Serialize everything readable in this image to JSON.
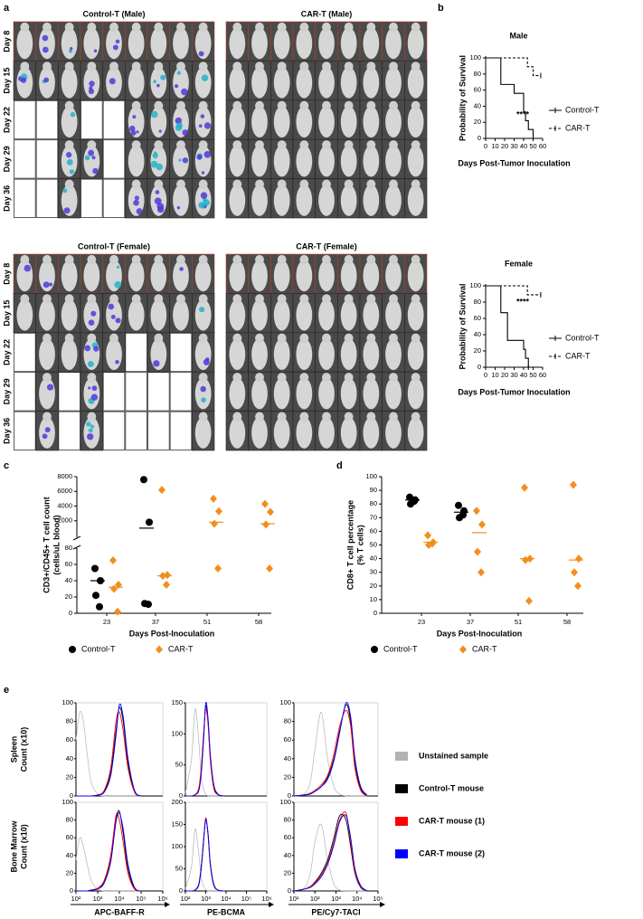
{
  "panel_labels": [
    "a",
    "b",
    "c",
    "d",
    "e"
  ],
  "imaging": {
    "titles": [
      "Control-T (Male)",
      "CAR-T (Male)",
      "Control-T (Female)",
      "CAR-T (Female)"
    ],
    "days": [
      "Day 8",
      "Day 15",
      "Day 22",
      "Day 29",
      "Day 36"
    ]
  },
  "chart_data": [
    {
      "type": "step",
      "title": "Male",
      "xlabel": "Days Post-Tumor Inoculation",
      "ylabel": "Probability of Survival",
      "xlim": [
        0,
        60
      ],
      "xticks": [
        0,
        10,
        20,
        30,
        40,
        50,
        60
      ],
      "ylim": [
        0,
        100
      ],
      "yticks": [
        0,
        20,
        40,
        60,
        80,
        100
      ],
      "annotation": "****",
      "series": [
        {
          "name": "Control-T",
          "color": "#000000",
          "dashed": false,
          "x": [
            0,
            16,
            30,
            40,
            42,
            45,
            50
          ],
          "values": [
            100,
            67,
            56,
            33,
            22,
            11,
            0
          ]
        },
        {
          "name": "CAR-T",
          "color": "#000000",
          "dashed": true,
          "x": [
            0,
            44,
            50,
            58
          ],
          "values": [
            100,
            89,
            78,
            78
          ]
        }
      ]
    },
    {
      "type": "step",
      "title": "Female",
      "xlabel": "Days Post-Tumor Inoculation",
      "ylabel": "Probability of Survival",
      "xlim": [
        0,
        60
      ],
      "xticks": [
        0,
        10,
        20,
        30,
        40,
        50,
        60
      ],
      "ylim": [
        0,
        100
      ],
      "yticks": [
        0,
        20,
        40,
        60,
        80,
        100
      ],
      "annotation": "****",
      "series": [
        {
          "name": "Control-T",
          "color": "#000000",
          "dashed": false,
          "x": [
            0,
            16,
            23,
            40,
            42,
            45
          ],
          "values": [
            100,
            67,
            33,
            22,
            11,
            0
          ]
        },
        {
          "name": "CAR-T",
          "color": "#000000",
          "dashed": true,
          "x": [
            0,
            44,
            58
          ],
          "values": [
            100,
            89,
            89
          ]
        }
      ]
    },
    {
      "type": "dot",
      "xlabel": "Days Post-Inoculation",
      "ylabel": [
        "CD3+/CD45+ T cell count",
        "(cells/uL blood)"
      ],
      "categories": [
        "23",
        "37",
        "51",
        "58"
      ],
      "ylim": [
        0,
        80
      ],
      "yticks": [
        0,
        20,
        40,
        60,
        80
      ],
      "ylim_upper": [
        0,
        8000
      ],
      "yticks_upper": [
        2000,
        4000,
        6000,
        8000
      ],
      "series": [
        {
          "name": "Control-T",
          "color": "#000000",
          "marker": "circle",
          "values": [
            [
              55,
              40,
              22,
              8
            ],
            [
              7600,
              1800,
              12,
              11
            ],
            null,
            null
          ],
          "means": [
            40,
            1000,
            null,
            null
          ]
        },
        {
          "name": "CAR-T",
          "color": "#f28e1c",
          "marker": "diamond",
          "values": [
            [
              65,
              35,
              30,
              2
            ],
            [
              6200,
              47,
              46,
              35
            ],
            [
              5000,
              3300,
              1600,
              55
            ],
            [
              4300,
              3200,
              1500,
              55
            ]
          ],
          "means": [
            32,
            46,
            1800,
            1600
          ]
        }
      ]
    },
    {
      "type": "dot",
      "xlabel": "Days Post-Inoculation",
      "ylabel": [
        "CD8+ T cell percentage",
        "(% T cells)"
      ],
      "categories": [
        "23",
        "37",
        "51",
        "58"
      ],
      "ylim": [
        0,
        100
      ],
      "yticks": [
        0,
        10,
        20,
        30,
        40,
        50,
        60,
        70,
        80,
        90,
        100
      ],
      "series": [
        {
          "name": "Control-T",
          "color": "#000000",
          "marker": "circle",
          "values": [
            [
              85,
              83,
              80,
              82
            ],
            [
              79,
              75,
              70,
              72
            ],
            null,
            null
          ],
          "means": [
            83,
            74,
            null,
            null
          ]
        },
        {
          "name": "CAR-T",
          "color": "#f28e1c",
          "marker": "diamond",
          "values": [
            [
              57,
              52,
              50,
              51
            ],
            [
              75,
              65,
              45,
              30
            ],
            [
              92,
              40,
              39,
              9
            ],
            [
              94,
              40,
              30,
              20
            ]
          ],
          "means": [
            52,
            59,
            40,
            39
          ]
        }
      ]
    },
    {
      "type": "histogram_overlay",
      "xscale": "log",
      "series": [
        {
          "name": "Unstained sample",
          "color": "#b3b3b3"
        },
        {
          "name": "Control-T mouse",
          "color": "#000000"
        },
        {
          "name": "CAR-T mouse (1)",
          "color": "#ff0000"
        },
        {
          "name": "CAR-T mouse (2)",
          "color": "#0000ff"
        }
      ],
      "rows": [
        {
          "label": "Spleen",
          "ylabel": "Count (x10)"
        },
        {
          "label": "Bone Marrow",
          "ylabel": "Count (x10)"
        }
      ],
      "columns": [
        {
          "xlabel": "APC-BAFF-R"
        },
        {
          "xlabel": "PE-BCMA"
        },
        {
          "xlabel": "PE/Cy7-TACI"
        }
      ],
      "panels": [
        [
          {
            "xlim": [
              100,
              1000000
            ],
            "ylim": [
              0,
              100
            ],
            "yticks": [
              0,
              20,
              40,
              60,
              80,
              100
            ],
            "x": [
              100,
              150,
              220,
              330,
              500,
              1000,
              2000,
              4000,
              7000,
              10000,
              15000,
              25000,
              50000,
              100000
            ],
            "values": [
              [
                60,
                90,
                80,
                45,
                15,
                2,
                0,
                0,
                0,
                0,
                0,
                0,
                0,
                0
              ],
              [
                0,
                0,
                0,
                0,
                0,
                1,
                5,
                25,
                70,
                95,
                80,
                35,
                5,
                0
              ],
              [
                0,
                0,
                0,
                0,
                0,
                1,
                6,
                30,
                80,
                90,
                70,
                30,
                4,
                0
              ],
              [
                0,
                0,
                0,
                0,
                0,
                1,
                4,
                22,
                65,
                98,
                85,
                40,
                6,
                0
              ]
            ]
          },
          {
            "xlim": [
              100,
              1000000
            ],
            "ylim": [
              0,
              150
            ],
            "yticks": [
              0,
              50,
              100,
              150
            ],
            "x": [
              100,
              200,
              300,
              450,
              600,
              800,
              1000,
              1300,
              1700,
              2500,
              4000,
              8000
            ],
            "values": [
              [
                5,
                60,
                140,
                90,
                30,
                10,
                3,
                0,
                0,
                0,
                0,
                0
              ],
              [
                0,
                0,
                2,
                10,
                40,
                100,
                145,
                120,
                60,
                15,
                2,
                0
              ],
              [
                0,
                0,
                2,
                12,
                45,
                105,
                140,
                115,
                55,
                12,
                2,
                0
              ],
              [
                0,
                0,
                2,
                8,
                35,
                95,
                150,
                125,
                65,
                18,
                3,
                0
              ]
            ]
          },
          {
            "xlim": [
              10,
              100000
            ],
            "ylim": [
              0,
              100
            ],
            "yticks": [
              0,
              20,
              40,
              60,
              80,
              100
            ],
            "x": [
              10,
              30,
              60,
              100,
              200,
              400,
              800,
              1500,
              3000,
              5000,
              8000,
              15000,
              30000
            ],
            "values": [
              [
                0,
                2,
                15,
                50,
                90,
                40,
                10,
                2,
                0,
                0,
                0,
                0,
                0
              ],
              [
                0,
                1,
                3,
                5,
                10,
                20,
                40,
                70,
                98,
                80,
                35,
                8,
                0
              ],
              [
                0,
                1,
                3,
                6,
                12,
                22,
                45,
                75,
                92,
                75,
                30,
                6,
                0
              ],
              [
                0,
                1,
                2,
                5,
                10,
                18,
                38,
                68,
                100,
                85,
                40,
                10,
                1
              ]
            ]
          }
        ],
        [
          {
            "xlim": [
              100,
              1000000
            ],
            "ylim": [
              0,
              100
            ],
            "yticks": [
              0,
              20,
              40,
              60,
              80,
              100
            ],
            "xticks": [
              {
                "value": 100,
                "label": "10²"
              },
              {
                "value": 1000,
                "label": "10³"
              },
              {
                "value": 10000,
                "label": "10⁴"
              },
              {
                "value": 100000,
                "label": "10⁵"
              },
              {
                "value": 1000000,
                "label": "10⁶"
              }
            ],
            "x": [
              100,
              150,
              220,
              330,
              500,
              1000,
              2000,
              4000,
              7000,
              10000,
              15000,
              25000,
              50000,
              100000
            ],
            "values": [
              [
                35,
                60,
                50,
                30,
                12,
                2,
                0,
                0,
                0,
                0,
                0,
                0,
                0,
                0
              ],
              [
                0,
                0,
                0,
                0,
                1,
                3,
                10,
                35,
                80,
                90,
                65,
                25,
                3,
                0
              ],
              [
                0,
                0,
                0,
                0,
                1,
                3,
                12,
                40,
                85,
                80,
                55,
                20,
                2,
                0
              ],
              [
                0,
                0,
                0,
                0,
                1,
                2,
                9,
                33,
                78,
                88,
                70,
                30,
                4,
                0
              ]
            ]
          },
          {
            "xlim": [
              100,
              1000000
            ],
            "ylim": [
              0,
              200
            ],
            "yticks": [
              0,
              50,
              100,
              150,
              200
            ],
            "xticks": [
              {
                "value": 100,
                "label": "10²"
              },
              {
                "value": 1000,
                "label": "10³"
              },
              {
                "value": 10000,
                "label": "10⁴"
              },
              {
                "value": 100000,
                "label": "10⁵"
              },
              {
                "value": 1000000,
                "label": "10⁶"
              }
            ],
            "x": [
              100,
              200,
              300,
              450,
              600,
              800,
              1000,
              1300,
              1700,
              2500,
              4000,
              8000
            ],
            "values": [
              [
                5,
                55,
                140,
                85,
                30,
                10,
                3,
                0,
                0,
                0,
                0,
                0
              ],
              [
                0,
                0,
                2,
                15,
                55,
                120,
                160,
                130,
                60,
                15,
                2,
                0
              ],
              [
                0,
                0,
                2,
                12,
                50,
                115,
                165,
                125,
                55,
                12,
                2,
                0
              ],
              [
                0,
                0,
                2,
                14,
                52,
                118,
                162,
                128,
                58,
                14,
                2,
                0
              ]
            ]
          },
          {
            "xlim": [
              10,
              100000
            ],
            "ylim": [
              0,
              100
            ],
            "yticks": [
              0,
              20,
              40,
              60,
              80,
              100
            ],
            "xticks": [
              {
                "value": 10,
                "label": "10¹"
              },
              {
                "value": 100,
                "label": "10²"
              },
              {
                "value": 1000,
                "label": "10³"
              },
              {
                "value": 10000,
                "label": "10⁴"
              },
              {
                "value": 100000,
                "label": "10⁵"
              }
            ],
            "x": [
              10,
              30,
              60,
              100,
              200,
              400,
              800,
              1500,
              3000,
              5000,
              8000,
              15000,
              30000
            ],
            "values": [
              [
                0,
                3,
                20,
                55,
                75,
                35,
                8,
                1,
                0,
                0,
                0,
                0,
                0
              ],
              [
                0,
                2,
                5,
                10,
                20,
                35,
                60,
                85,
                80,
                50,
                20,
                4,
                0
              ],
              [
                0,
                2,
                5,
                9,
                18,
                32,
                55,
                80,
                88,
                55,
                22,
                5,
                0
              ],
              [
                0,
                2,
                4,
                8,
                16,
                30,
                52,
                78,
                85,
                60,
                25,
                6,
                0
              ]
            ]
          }
        ]
      ]
    }
  ]
}
